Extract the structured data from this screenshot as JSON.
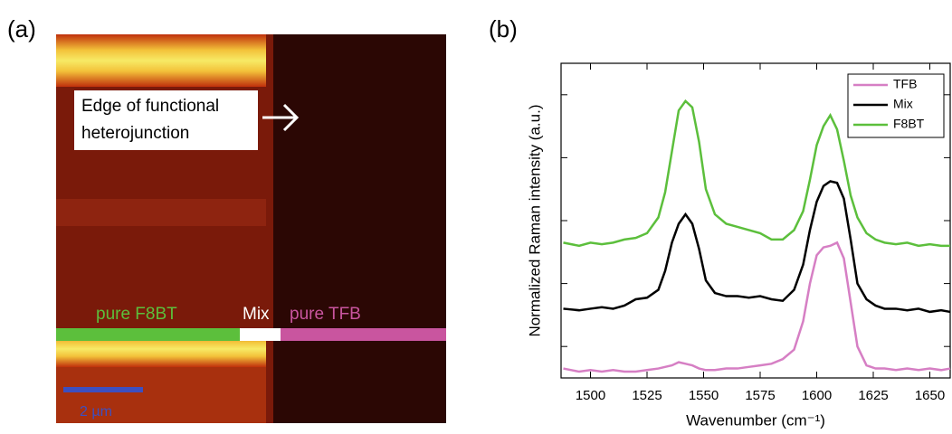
{
  "image_panel": {
    "panel_label": "(a)",
    "annotation": [
      "Edge of functional",
      "heterojunction"
    ],
    "regions": [
      "pure F8BT",
      "Mix",
      "pure TFB"
    ],
    "scale_bar": "2 µm"
  },
  "chart_data": {
    "type": "line",
    "panel_label": "(b)",
    "x_label": "Wavenumber (cm⁻¹)",
    "y_label": "Normalized Raman intensity (a.u.)",
    "x": [
      1488,
      1495,
      1500,
      1505,
      1510,
      1515,
      1520,
      1525,
      1530,
      1533,
      1536,
      1539,
      1542,
      1545,
      1548,
      1551,
      1555,
      1560,
      1565,
      1570,
      1575,
      1580,
      1585,
      1590,
      1594,
      1597,
      1600,
      1603,
      1606,
      1609,
      1612,
      1615,
      1618,
      1622,
      1626,
      1630,
      1635,
      1640,
      1645,
      1650,
      1655,
      1659
    ],
    "series": [
      {
        "name": "TFB",
        "color": "#d67fc4",
        "values": [
          0.3,
          0.2,
          0.25,
          0.2,
          0.25,
          0.2,
          0.2,
          0.25,
          0.3,
          0.35,
          0.4,
          0.5,
          0.45,
          0.4,
          0.3,
          0.25,
          0.25,
          0.3,
          0.3,
          0.35,
          0.4,
          0.45,
          0.6,
          0.9,
          1.8,
          3.0,
          3.9,
          4.15,
          4.2,
          4.3,
          3.8,
          2.4,
          1.0,
          0.4,
          0.3,
          0.3,
          0.25,
          0.3,
          0.25,
          0.3,
          0.25,
          0.3
        ]
      },
      {
        "name": "Mix",
        "color": "#000000",
        "values": [
          2.2,
          2.15,
          2.2,
          2.25,
          2.2,
          2.3,
          2.5,
          2.55,
          2.8,
          3.4,
          4.3,
          4.9,
          5.2,
          4.9,
          4.1,
          3.1,
          2.7,
          2.6,
          2.6,
          2.55,
          2.6,
          2.5,
          2.45,
          2.8,
          3.6,
          4.7,
          5.6,
          6.1,
          6.25,
          6.2,
          5.7,
          4.4,
          3.0,
          2.5,
          2.3,
          2.2,
          2.2,
          2.15,
          2.2,
          2.1,
          2.15,
          2.1
        ]
      },
      {
        "name": "F8BT",
        "color": "#5cbf3c",
        "values": [
          4.3,
          4.2,
          4.3,
          4.25,
          4.3,
          4.4,
          4.45,
          4.6,
          5.1,
          5.9,
          7.2,
          8.5,
          8.8,
          8.6,
          7.5,
          6.0,
          5.2,
          4.9,
          4.8,
          4.7,
          4.6,
          4.4,
          4.4,
          4.7,
          5.3,
          6.3,
          7.4,
          8.0,
          8.35,
          7.9,
          6.9,
          5.8,
          5.1,
          4.6,
          4.4,
          4.3,
          4.25,
          4.3,
          4.2,
          4.25,
          4.2,
          4.2
        ]
      }
    ],
    "xlim": [
      1487,
      1659
    ],
    "xticks": [
      1500,
      1525,
      1550,
      1575,
      1600,
      1625,
      1650
    ],
    "ylim": [
      0,
      10
    ],
    "yticks": [
      1,
      3,
      5,
      7,
      9
    ],
    "legend": "upper right"
  }
}
